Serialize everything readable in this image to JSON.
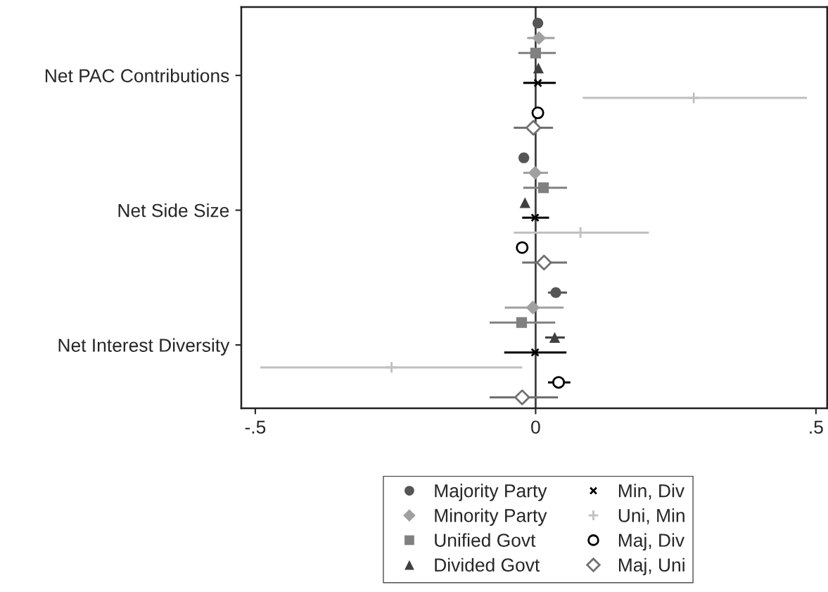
{
  "chart_data": {
    "type": "scatter",
    "orientation": "horizontal",
    "categories": [
      "Net PAC Contributions",
      "Net Side Size",
      "Net Interest Diversity"
    ],
    "xlim": [
      -0.525,
      0.52
    ],
    "xticks": [
      {
        "value": -0.5,
        "label": "-.5"
      },
      0,
      {
        "value": 0.5,
        "label": ".5"
      }
    ],
    "grid": false,
    "legend": "bottom",
    "ref_lines": [
      {
        "axis": "x",
        "value": 0,
        "color": "#404040"
      }
    ],
    "series": [
      {
        "name": "Majority Party",
        "color": "#555555",
        "marker": "circle",
        "values": [
          0.004,
          -0.021,
          0.036
        ],
        "errors": [
          null,
          null,
          [
            0.022,
            0.056
          ]
        ]
      },
      {
        "name": "Minority Party",
        "color": "#a0a0a0",
        "marker": "diamond",
        "values": [
          0.006,
          -0.001,
          -0.005
        ],
        "errors": [
          [
            -0.015,
            0.034
          ],
          [
            -0.022,
            0.022
          ],
          [
            -0.055,
            0.05
          ]
        ]
      },
      {
        "name": "Unified Govt",
        "color": "#808080",
        "marker": "square",
        "values": [
          0.0,
          0.014,
          -0.025
        ],
        "errors": [
          [
            -0.031,
            0.036
          ],
          [
            -0.022,
            0.056
          ],
          [
            -0.082,
            0.035
          ]
        ]
      },
      {
        "name": "Divided Govt",
        "color": "#404040",
        "marker": "triangle",
        "values": [
          0.005,
          -0.019,
          0.034
        ],
        "errors": [
          null,
          null,
          [
            0.017,
            0.052
          ]
        ]
      },
      {
        "name": "Min, Div",
        "color": "#000000",
        "marker": "cross",
        "values": [
          0.004,
          -0.001,
          -0.001
        ],
        "errors": [
          [
            -0.022,
            0.036
          ],
          [
            -0.024,
            0.024
          ],
          [
            -0.056,
            0.055
          ]
        ]
      },
      {
        "name": "Uni, Min",
        "color": "#c0c0c0",
        "marker": "plus",
        "values": [
          0.282,
          0.08,
          -0.257
        ],
        "errors": [
          [
            0.084,
            0.484
          ],
          [
            -0.039,
            0.202
          ],
          [
            -0.491,
            -0.024
          ]
        ]
      },
      {
        "name": "Maj, Div",
        "color": "#000000",
        "marker": "circle-open",
        "values": [
          0.004,
          -0.024,
          0.041
        ],
        "errors": [
          null,
          null,
          [
            0.022,
            0.062
          ]
        ]
      },
      {
        "name": "Maj, Uni",
        "color": "#707070",
        "marker": "diamond-open",
        "values": [
          -0.004,
          0.015,
          -0.024
        ],
        "errors": [
          [
            -0.039,
            0.031
          ],
          [
            -0.024,
            0.056
          ],
          [
            -0.082,
            0.04
          ]
        ]
      }
    ]
  }
}
